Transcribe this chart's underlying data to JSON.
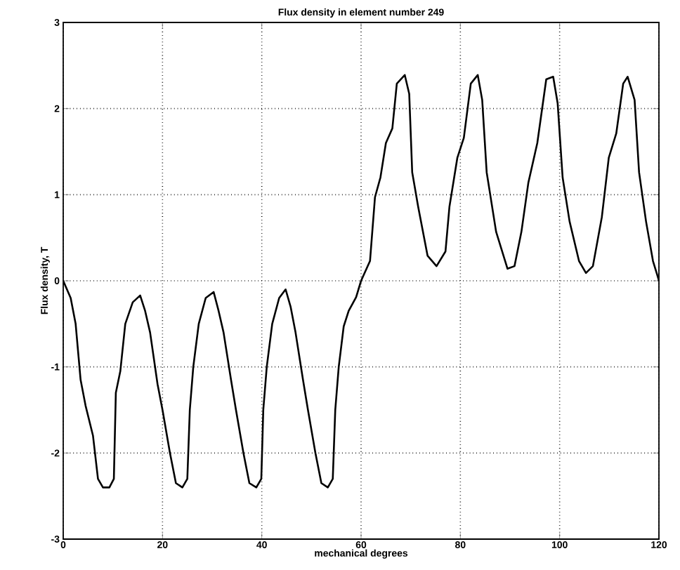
{
  "chart_data": {
    "type": "line",
    "title": "Flux density in element number 249",
    "xlabel": "mechanical degrees",
    "ylabel": "Flux density, T",
    "xlim": [
      0,
      120
    ],
    "ylim": [
      -3,
      3
    ],
    "xticks": [
      0,
      20,
      40,
      60,
      80,
      100,
      120
    ],
    "yticks": [
      -3,
      -2,
      -1,
      0,
      1,
      2,
      3
    ],
    "grid": true,
    "marker": "none",
    "line_style": "solid",
    "series": [
      {
        "color": "#000000",
        "x": [
          0,
          1.5,
          2.5,
          3.5,
          4.5,
          6,
          7,
          8,
          9.3,
          10.2,
          10.6,
          11.5,
          12.5,
          14,
          15.5,
          16.5,
          17.5,
          19,
          20,
          21.5,
          22.7,
          24,
          25,
          25.5,
          26.2,
          27.3,
          28.7,
          30.3,
          31.3,
          32.3,
          33.8,
          34.8,
          36.3,
          37.5,
          38.9,
          39.9,
          40.3,
          41,
          42.1,
          43.5,
          44.8,
          45.8,
          46.8,
          48.3,
          49.3,
          50.8,
          52,
          53.3,
          54.3,
          54.8,
          55.5,
          56.5,
          57.5,
          59,
          60,
          61.8,
          62.8,
          63.9,
          65,
          66.3,
          67.2,
          68.8,
          69.7,
          70.3,
          71.5,
          73.4,
          75.2,
          77,
          77.8,
          79.4,
          80.7,
          82.1,
          83.5,
          84.4,
          85.3,
          87.2,
          89.5,
          90.9,
          92.3,
          93.7,
          95.5,
          97.3,
          98.7,
          99.6,
          100.6,
          102,
          103.9,
          105.3,
          106.7,
          108.5,
          109.9,
          111.4,
          112.8,
          113.7,
          115.1,
          116,
          117.4,
          118.8,
          119.7,
          120
        ],
        "values": [
          0,
          -0.2,
          -0.5,
          -1.15,
          -1.45,
          -1.8,
          -2.3,
          -2.4,
          -2.4,
          -2.3,
          -1.3,
          -1.05,
          -0.5,
          -0.25,
          -0.17,
          -0.35,
          -0.6,
          -1.2,
          -1.5,
          -2.0,
          -2.35,
          -2.4,
          -2.3,
          -1.5,
          -1.0,
          -0.5,
          -0.2,
          -0.13,
          -0.35,
          -0.6,
          -1.15,
          -1.5,
          -2.0,
          -2.35,
          -2.4,
          -2.3,
          -1.5,
          -1.0,
          -0.5,
          -0.2,
          -0.1,
          -0.3,
          -0.6,
          -1.15,
          -1.5,
          -2.0,
          -2.35,
          -2.4,
          -2.3,
          -1.5,
          -1.0,
          -0.53,
          -0.35,
          -0.19,
          0,
          0.23,
          0.97,
          1.2,
          1.6,
          1.77,
          2.29,
          2.39,
          2.17,
          1.26,
          0.86,
          0.29,
          0.17,
          0.34,
          0.86,
          1.43,
          1.66,
          2.29,
          2.39,
          2.1,
          1.26,
          0.57,
          0.14,
          0.17,
          0.57,
          1.14,
          1.6,
          2.34,
          2.37,
          2.06,
          1.2,
          0.69,
          0.23,
          0.09,
          0.17,
          0.74,
          1.43,
          1.71,
          2.29,
          2.37,
          2.1,
          1.26,
          0.69,
          0.23,
          0.06,
          0
        ]
      }
    ]
  }
}
